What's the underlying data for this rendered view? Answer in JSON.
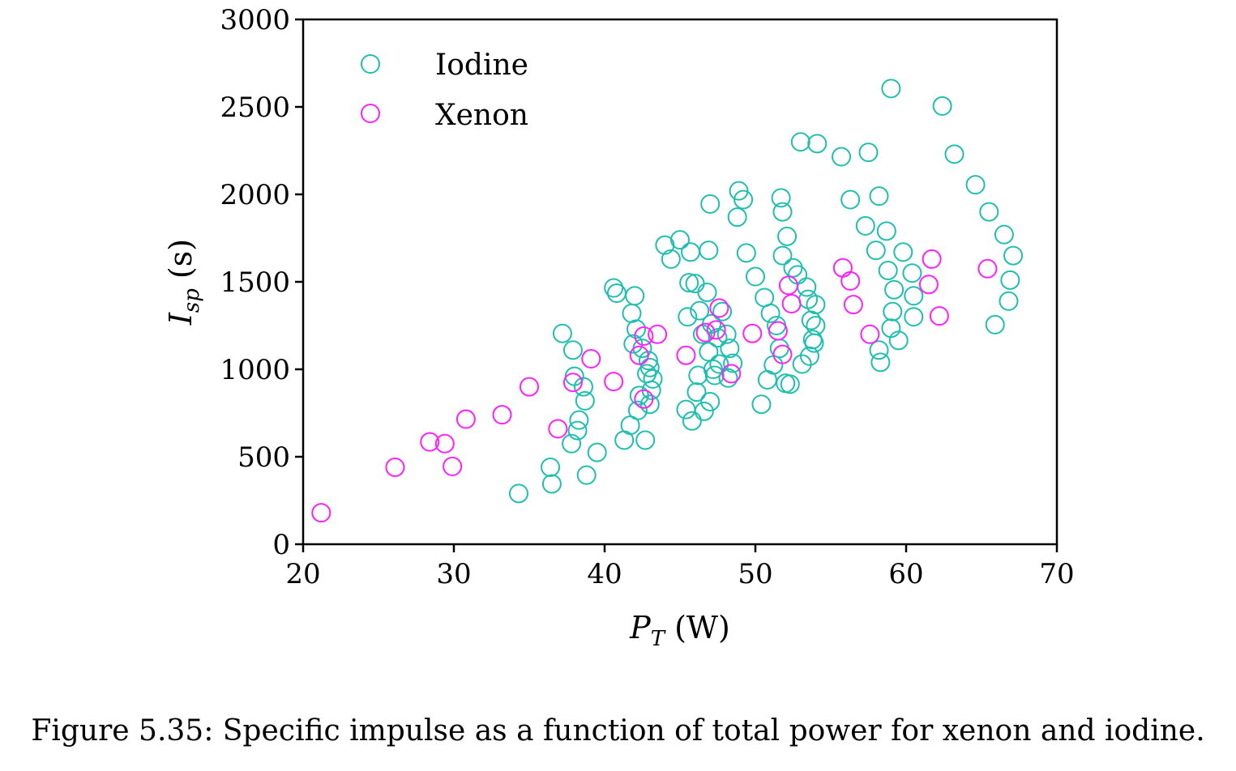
{
  "caption": "Figure 5.35: Specific impulse as a function of total power for xenon and iodine.",
  "chart_data": {
    "type": "scatter",
    "title": "",
    "xlabel": {
      "main": "P",
      "sub": "T",
      "unit": "(W)"
    },
    "ylabel": {
      "main": "I",
      "sub": "sp",
      "unit": "(s)"
    },
    "xlim": [
      20,
      70
    ],
    "ylim": [
      0,
      3000
    ],
    "xticks": [
      20,
      30,
      40,
      50,
      60,
      70
    ],
    "yticks": [
      0,
      500,
      1000,
      1500,
      2000,
      2500,
      3000
    ],
    "grid": false,
    "legend_position": "top-left",
    "series": [
      {
        "name": "Iodine",
        "color": "#1fbfb0",
        "marker": "open-circle",
        "points": [
          [
            34.3,
            290
          ],
          [
            36.4,
            440
          ],
          [
            36.5,
            345
          ],
          [
            37.2,
            1205
          ],
          [
            37.8,
            575
          ],
          [
            37.9,
            1110
          ],
          [
            38.0,
            960
          ],
          [
            38.2,
            650
          ],
          [
            38.3,
            710
          ],
          [
            38.6,
            900
          ],
          [
            38.7,
            820
          ],
          [
            38.8,
            395
          ],
          [
            39.5,
            525
          ],
          [
            40.6,
            1465
          ],
          [
            40.8,
            1435
          ],
          [
            41.3,
            595
          ],
          [
            41.7,
            680
          ],
          [
            41.8,
            1320
          ],
          [
            41.9,
            1145
          ],
          [
            42.0,
            1420
          ],
          [
            42.1,
            1230
          ],
          [
            42.2,
            765
          ],
          [
            42.3,
            850
          ],
          [
            42.5,
            1120
          ],
          [
            42.7,
            595
          ],
          [
            42.8,
            975
          ],
          [
            42.9,
            1050
          ],
          [
            43.0,
            1010
          ],
          [
            43.0,
            800
          ],
          [
            43.1,
            880
          ],
          [
            43.2,
            945
          ],
          [
            44.0,
            1710
          ],
          [
            44.4,
            1630
          ],
          [
            45.0,
            1740
          ],
          [
            45.4,
            770
          ],
          [
            45.5,
            1300
          ],
          [
            45.6,
            1495
          ],
          [
            45.7,
            1670
          ],
          [
            45.8,
            705
          ],
          [
            46.0,
            1490
          ],
          [
            46.1,
            870
          ],
          [
            46.2,
            965
          ],
          [
            46.3,
            1335
          ],
          [
            46.5,
            1200
          ],
          [
            46.6,
            760
          ],
          [
            46.8,
            1440
          ],
          [
            46.9,
            1680
          ],
          [
            46.9,
            1100
          ],
          [
            47.0,
            815
          ],
          [
            47.0,
            1945
          ],
          [
            47.1,
            1260
          ],
          [
            47.2,
            1000
          ],
          [
            47.3,
            965
          ],
          [
            47.5,
            1180
          ],
          [
            47.6,
            1030
          ],
          [
            47.8,
            1330
          ],
          [
            48.1,
            1200
          ],
          [
            48.2,
            950
          ],
          [
            48.3,
            1120
          ],
          [
            48.5,
            1035
          ],
          [
            48.8,
            1870
          ],
          [
            48.9,
            2020
          ],
          [
            49.2,
            1970
          ],
          [
            49.4,
            1665
          ],
          [
            50.0,
            1530
          ],
          [
            50.4,
            800
          ],
          [
            50.6,
            1410
          ],
          [
            50.8,
            940
          ],
          [
            51.0,
            1320
          ],
          [
            51.2,
            1025
          ],
          [
            51.4,
            1250
          ],
          [
            51.6,
            1120
          ],
          [
            51.7,
            1980
          ],
          [
            51.8,
            1900
          ],
          [
            51.8,
            1650
          ],
          [
            52.0,
            920
          ],
          [
            52.1,
            1760
          ],
          [
            52.3,
            915
          ],
          [
            52.5,
            1580
          ],
          [
            52.8,
            1540
          ],
          [
            53.0,
            2300
          ],
          [
            53.1,
            1030
          ],
          [
            53.4,
            1470
          ],
          [
            53.5,
            1400
          ],
          [
            53.6,
            1075
          ],
          [
            53.7,
            1280
          ],
          [
            53.8,
            1170
          ],
          [
            53.9,
            1150
          ],
          [
            54.0,
            1370
          ],
          [
            54.0,
            1250
          ],
          [
            54.1,
            2290
          ],
          [
            55.7,
            2215
          ],
          [
            56.3,
            1970
          ],
          [
            57.3,
            1820
          ],
          [
            57.5,
            2240
          ],
          [
            58.0,
            1680
          ],
          [
            58.2,
            1990
          ],
          [
            58.2,
            1110
          ],
          [
            58.3,
            1040
          ],
          [
            58.7,
            1790
          ],
          [
            58.8,
            1565
          ],
          [
            59.0,
            1235
          ],
          [
            59.0,
            2605
          ],
          [
            59.1,
            1330
          ],
          [
            59.2,
            1455
          ],
          [
            59.5,
            1165
          ],
          [
            59.8,
            1670
          ],
          [
            60.4,
            1550
          ],
          [
            60.5,
            1420
          ],
          [
            60.5,
            1300
          ],
          [
            62.4,
            2505
          ],
          [
            63.2,
            2230
          ],
          [
            64.6,
            2055
          ],
          [
            65.5,
            1900
          ],
          [
            65.9,
            1255
          ],
          [
            66.5,
            1770
          ],
          [
            66.8,
            1390
          ],
          [
            66.9,
            1510
          ],
          [
            67.1,
            1650
          ]
        ]
      },
      {
        "name": "Xenon",
        "color": "#ff1fff",
        "marker": "open-circle",
        "points": [
          [
            21.2,
            180
          ],
          [
            26.1,
            440
          ],
          [
            28.4,
            585
          ],
          [
            29.4,
            575
          ],
          [
            29.9,
            445
          ],
          [
            30.8,
            715
          ],
          [
            33.2,
            740
          ],
          [
            35.0,
            900
          ],
          [
            36.9,
            660
          ],
          [
            37.9,
            925
          ],
          [
            39.1,
            1060
          ],
          [
            40.6,
            930
          ],
          [
            42.3,
            1080
          ],
          [
            42.6,
            1190
          ],
          [
            42.6,
            830
          ],
          [
            43.5,
            1200
          ],
          [
            45.4,
            1080
          ],
          [
            46.7,
            1210
          ],
          [
            47.4,
            1225
          ],
          [
            47.6,
            1350
          ],
          [
            48.4,
            975
          ],
          [
            49.8,
            1205
          ],
          [
            51.5,
            1220
          ],
          [
            51.8,
            1085
          ],
          [
            52.2,
            1480
          ],
          [
            52.4,
            1375
          ],
          [
            55.8,
            1580
          ],
          [
            56.3,
            1505
          ],
          [
            56.5,
            1370
          ],
          [
            57.6,
            1200
          ],
          [
            61.5,
            1485
          ],
          [
            61.7,
            1630
          ],
          [
            62.2,
            1305
          ],
          [
            65.4,
            1575
          ]
        ]
      }
    ]
  }
}
